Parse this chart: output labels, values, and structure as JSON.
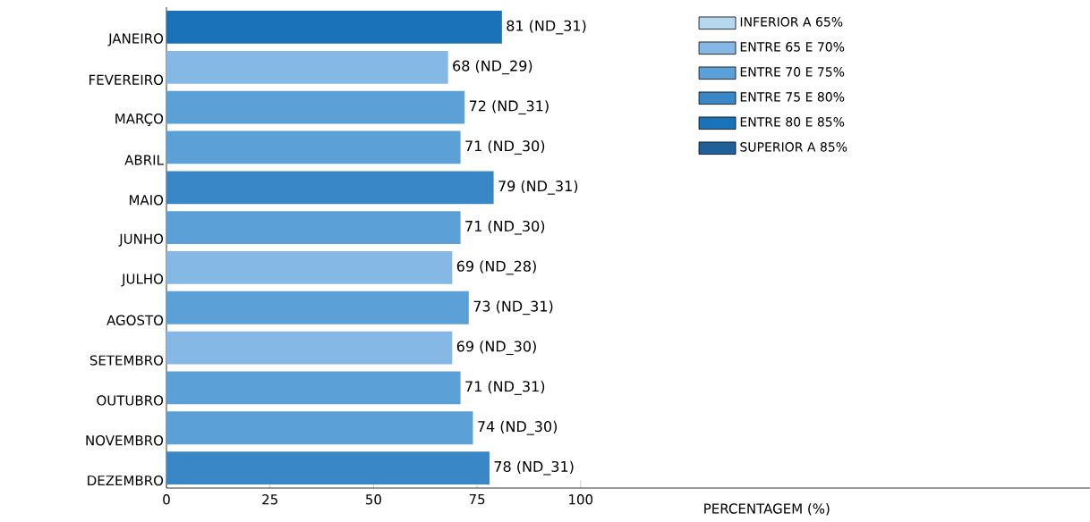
{
  "chart_data": {
    "type": "bar",
    "orientation": "horizontal",
    "stacked": true,
    "xlabel": "PERCENTAGEM (%)",
    "categories": [
      "JANEIRO",
      "FEVEREIRO",
      "MARÇO",
      "ABRIL",
      "MAIO",
      "JUNHO",
      "JULHO",
      "AGOSTO",
      "SETEMBRO",
      "OUTUBRO",
      "NOVEMBRO",
      "DEZEMBRO"
    ],
    "series": [
      {
        "name": "INFERIOR A 65%",
        "color": "#b5d7f0",
        "values": [
          null,
          null,
          null,
          null,
          null,
          null,
          null,
          null,
          null,
          null,
          null,
          null
        ],
        "value_labels": [
          null,
          null,
          null,
          null,
          null,
          null,
          null,
          null,
          null,
          null,
          null,
          null
        ]
      },
      {
        "name": "ENTRE  65 E  70%",
        "color": "#85b8e5",
        "values": [
          null,
          68,
          null,
          null,
          null,
          null,
          69,
          null,
          69,
          null,
          null,
          null
        ],
        "value_labels": [
          null,
          "68 (ND_29)",
          null,
          null,
          null,
          null,
          "69 (ND_28)",
          null,
          "69 (ND_30)",
          null,
          null,
          null
        ]
      },
      {
        "name": "ENTRE  70 E  75%",
        "color": "#5ba1d8",
        "values": [
          null,
          null,
          72,
          71,
          null,
          71,
          null,
          73,
          null,
          71,
          74,
          null
        ],
        "value_labels": [
          null,
          null,
          "72 (ND_31)",
          "71 (ND_30)",
          null,
          "71 (ND_30)",
          null,
          "73 (ND_31)",
          null,
          "71 (ND_31)",
          "74 (ND_30)",
          null
        ]
      },
      {
        "name": "ENTRE 75 E  80%",
        "color": "#3a87c8",
        "values": [
          null,
          null,
          null,
          null,
          79,
          null,
          null,
          null,
          null,
          null,
          null,
          78
        ],
        "value_labels": [
          null,
          null,
          null,
          null,
          "79 (ND_31)",
          null,
          null,
          null,
          null,
          null,
          null,
          "78 (ND_31)"
        ]
      },
      {
        "name": "ENTRE  80 E  85%",
        "color": "#1a73b8",
        "values": [
          81,
          null,
          null,
          null,
          null,
          null,
          null,
          null,
          null,
          null,
          null,
          null
        ],
        "value_labels": [
          "81 (ND_31)",
          null,
          null,
          null,
          null,
          null,
          null,
          null,
          null,
          null,
          null,
          null
        ]
      },
      {
        "name": "SUPERIOR A 85%",
        "color": "#1f5f9a",
        "values": [
          null,
          null,
          null,
          null,
          null,
          null,
          null,
          null,
          null,
          null,
          null,
          null
        ],
        "value_labels": [
          null,
          null,
          null,
          null,
          null,
          null,
          null,
          null,
          null,
          null,
          null,
          null
        ]
      }
    ],
    "xlim": [
      0,
      223
    ],
    "xticks": [
      0,
      25,
      50,
      75,
      100
    ],
    "legend": "top right"
  }
}
